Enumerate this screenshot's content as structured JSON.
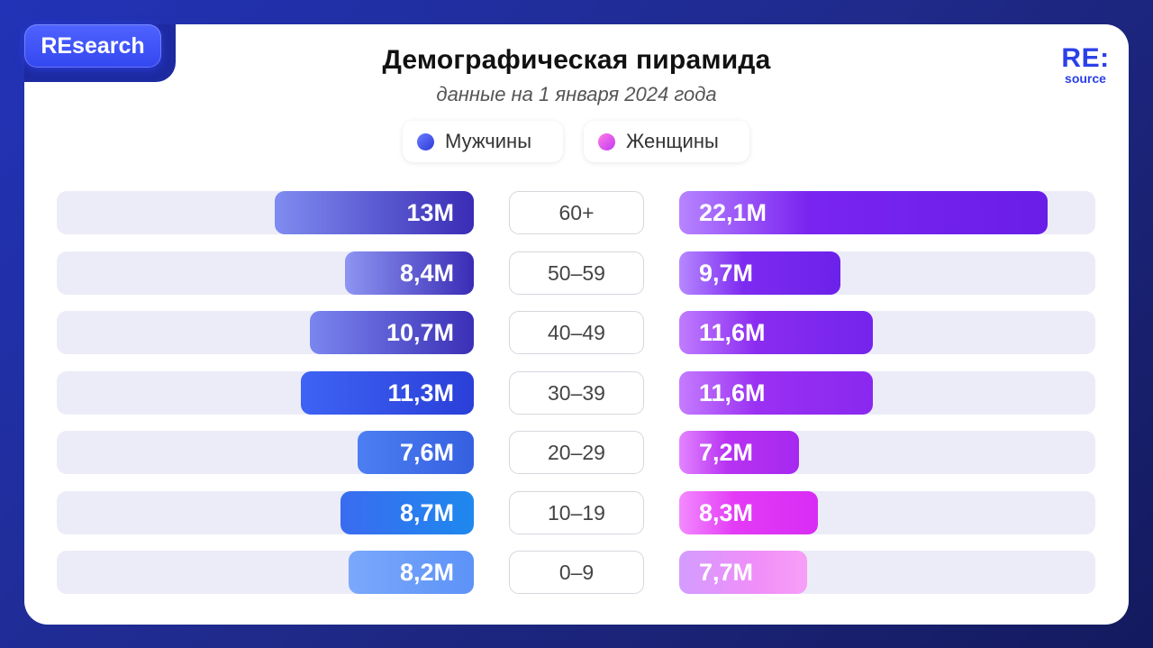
{
  "brand": {
    "badge": "REsearch",
    "logo_main": "RE:",
    "logo_sub": "source"
  },
  "header": {
    "title": "Демографическая пирамида",
    "subtitle": "данные на 1 января 2024 года"
  },
  "legend": {
    "men": "Мужчины",
    "women": "Женщины"
  },
  "colors": {
    "men_accent": "#3347f0",
    "women_accent": "#a020f0",
    "track": "#ececf8"
  },
  "chart_data": {
    "type": "bar",
    "title": "Демографическая пирамида",
    "subtitle": "данные на 1 января 2024 года",
    "categories": [
      "60+",
      "50–59",
      "40–49",
      "30–39",
      "20–29",
      "10–19",
      "0–9"
    ],
    "series": [
      {
        "name": "Мужчины",
        "values": [
          13,
          8.4,
          10.7,
          11.3,
          7.6,
          8.7,
          8.2
        ],
        "labels": [
          "13M",
          "8,4M",
          "10,7M",
          "11,3M",
          "7,6M",
          "8,7M",
          "8,2M"
        ]
      },
      {
        "name": "Женщины",
        "values": [
          22.1,
          9.7,
          11.6,
          11.6,
          7.2,
          8.3,
          7.7
        ],
        "labels": [
          "22,1M",
          "9,7M",
          "11,6M",
          "11,6M",
          "7,2M",
          "8,3M",
          "7,7M"
        ]
      }
    ],
    "unit": "M",
    "legend_position": "top-center"
  }
}
